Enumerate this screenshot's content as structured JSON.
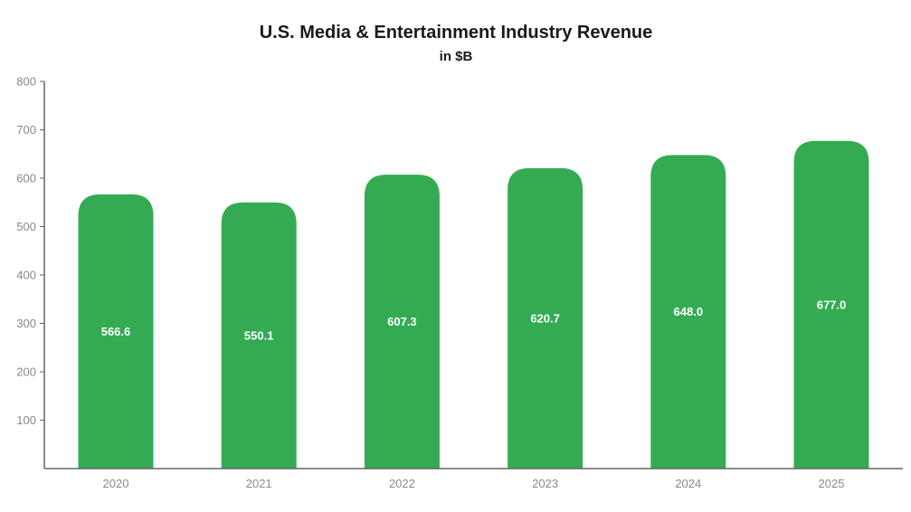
{
  "chart_data": {
    "type": "bar",
    "title": "U.S. Media & Entertainment Industry Revenue",
    "subtitle": "in $B",
    "xlabel": "",
    "ylabel": "",
    "categories": [
      "2020",
      "2021",
      "2022",
      "2023",
      "2024",
      "2025"
    ],
    "values": [
      566.6,
      550.1,
      607.3,
      620.7,
      648.0,
      677.0
    ],
    "data_labels": [
      "566.6",
      "550.1",
      "607.3",
      "620.7",
      "648.0",
      "677.0"
    ],
    "ylim": [
      0,
      800
    ],
    "yticks": [
      100,
      200,
      300,
      400,
      500,
      600,
      700,
      800
    ],
    "ytick_labels": [
      "100",
      "200",
      "300",
      "400",
      "500",
      "600",
      "700",
      "800"
    ],
    "grid": false,
    "legend": "none",
    "bar_color": "#34ab53",
    "label_color": "#ffffff"
  }
}
